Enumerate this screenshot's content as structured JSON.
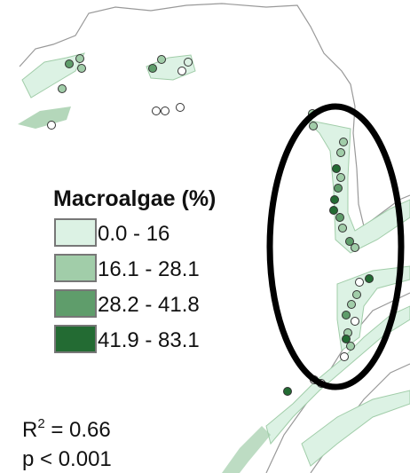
{
  "legend": {
    "title": "Macroalgae (%)",
    "items": [
      {
        "label": "0.0 - 16",
        "color": "#dcf2e4"
      },
      {
        "label": "16.1 - 28.1",
        "color": "#a1cda9"
      },
      {
        "label": "28.2 - 41.8",
        "color": "#5f9d6b"
      },
      {
        "label": "41.9 - 83.1",
        "color": "#236b33"
      }
    ]
  },
  "stats": {
    "r_squared": {
      "symbol": "R",
      "exponent": "2",
      "text": " = 0.66"
    },
    "p_value": "p < 0.001"
  }
}
